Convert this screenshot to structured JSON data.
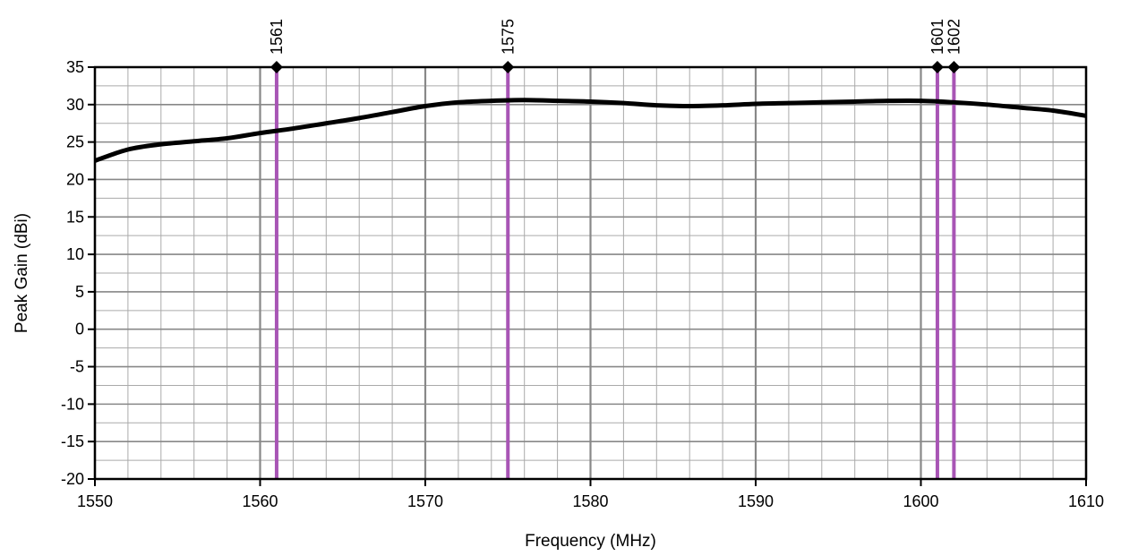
{
  "chart_data": {
    "type": "line",
    "title": "",
    "xlabel": "Frequency (MHz)",
    "ylabel": "Peak Gain (dBi)",
    "xlim": [
      1550,
      1610
    ],
    "ylim": [
      -20,
      35
    ],
    "x_ticks": [
      1550,
      1560,
      1570,
      1580,
      1590,
      1600,
      1610
    ],
    "x_tick_labels": [
      "1550",
      "1560",
      "1570",
      "1580",
      "1590",
      "1600",
      "1610"
    ],
    "y_ticks": [
      35,
      30,
      25,
      20,
      15,
      10,
      5,
      0,
      -5,
      -10,
      -15,
      -20
    ],
    "y_tick_labels": [
      "35",
      "30",
      "25",
      "20",
      "15",
      "10",
      "5",
      "0",
      "-5",
      "-10",
      "-15",
      "-20"
    ],
    "grid": true,
    "series": [
      {
        "x": [
          1550,
          1552,
          1554,
          1556,
          1558,
          1560,
          1562,
          1564,
          1566,
          1568,
          1570,
          1572,
          1574,
          1576,
          1578,
          1580,
          1582,
          1584,
          1586,
          1588,
          1590,
          1592,
          1594,
          1596,
          1598,
          1600,
          1602,
          1604,
          1606,
          1608,
          1610
        ],
        "y": [
          22.5,
          24.0,
          24.7,
          25.1,
          25.5,
          26.2,
          26.8,
          27.5,
          28.2,
          29.0,
          29.8,
          30.3,
          30.5,
          30.6,
          30.5,
          30.4,
          30.2,
          29.9,
          29.8,
          29.9,
          30.1,
          30.2,
          30.3,
          30.4,
          30.5,
          30.5,
          30.3,
          30.0,
          29.6,
          29.2,
          28.5
        ],
        "color": "#000000"
      }
    ],
    "markers": [
      {
        "x": 1561,
        "label": "1561",
        "color": "#a855b5"
      },
      {
        "x": 1575,
        "label": "1575",
        "color": "#a855b5"
      },
      {
        "x": 1601,
        "label": "1601",
        "color": "#a855b5"
      },
      {
        "x": 1602,
        "label": "1602",
        "color": "#a855b5"
      }
    ]
  }
}
